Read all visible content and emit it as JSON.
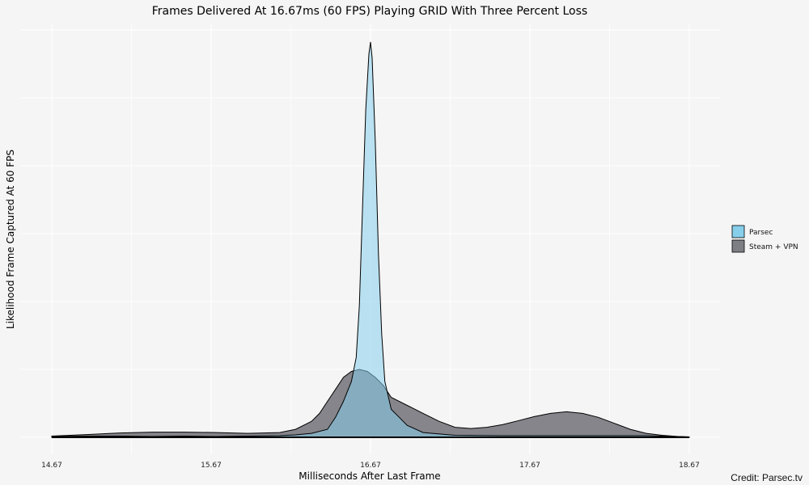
{
  "chart_data": {
    "type": "area",
    "title": "Frames Delivered At 16.67ms (60 FPS) Playing GRID With Three Percent Loss",
    "xlabel": "Milliseconds After Last Frame",
    "ylabel": "Likelihood Frame Captured At 60 FPS",
    "xlim": [
      14.67,
      18.67
    ],
    "ylim": [
      0,
      1.0
    ],
    "x_ticks": [
      14.67,
      15.67,
      16.67,
      17.67,
      18.67
    ],
    "x_tick_labels": [
      "14.67",
      "15.67",
      "16.67",
      "17.67",
      "18.67"
    ],
    "grid": true,
    "legend_position": "right",
    "series": [
      {
        "name": "Steam + VPN",
        "color": "#7e7e85",
        "x": [
          14.67,
          14.9,
          15.1,
          15.3,
          15.5,
          15.7,
          15.9,
          16.1,
          16.2,
          16.3,
          16.35,
          16.4,
          16.45,
          16.5,
          16.55,
          16.6,
          16.65,
          16.7,
          16.75,
          16.8,
          16.9,
          17.0,
          17.1,
          17.2,
          17.3,
          17.4,
          17.5,
          17.6,
          17.7,
          17.8,
          17.9,
          18.0,
          18.1,
          18.2,
          18.3,
          18.4,
          18.5,
          18.6,
          18.67
        ],
        "values": [
          0.003,
          0.007,
          0.011,
          0.013,
          0.013,
          0.012,
          0.01,
          0.012,
          0.02,
          0.04,
          0.06,
          0.09,
          0.12,
          0.15,
          0.165,
          0.17,
          0.165,
          0.15,
          0.13,
          0.1,
          0.08,
          0.06,
          0.04,
          0.025,
          0.022,
          0.025,
          0.032,
          0.042,
          0.052,
          0.06,
          0.064,
          0.06,
          0.05,
          0.035,
          0.02,
          0.01,
          0.005,
          0.002,
          0.001
        ]
      },
      {
        "name": "Parsec",
        "color": "#87ceeb",
        "x": [
          14.67,
          14.9,
          15.1,
          15.3,
          15.5,
          15.7,
          15.9,
          16.1,
          16.2,
          16.3,
          16.4,
          16.45,
          16.5,
          16.55,
          16.58,
          16.6,
          16.62,
          16.64,
          16.66,
          16.67,
          16.68,
          16.7,
          16.72,
          16.74,
          16.76,
          16.8,
          16.85,
          16.9,
          17.0,
          17.2,
          17.5,
          17.8,
          18.1,
          18.4,
          18.67
        ],
        "values": [
          0.002,
          0.003,
          0.003,
          0.002,
          0.003,
          0.002,
          0.003,
          0.004,
          0.006,
          0.01,
          0.02,
          0.05,
          0.09,
          0.14,
          0.2,
          0.33,
          0.58,
          0.82,
          0.96,
          0.99,
          0.95,
          0.74,
          0.46,
          0.26,
          0.14,
          0.07,
          0.05,
          0.03,
          0.012,
          0.005,
          0.004,
          0.004,
          0.004,
          0.004,
          0.001
        ]
      }
    ]
  },
  "credit": "Credit: Parsec.tv"
}
